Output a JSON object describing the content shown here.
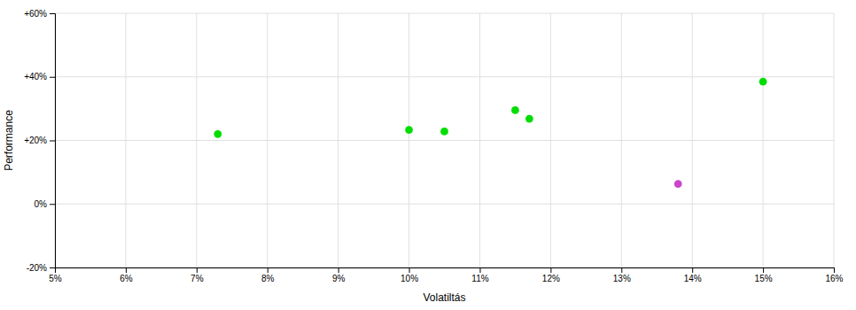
{
  "chart_data": {
    "type": "scatter",
    "xlabel": "Volatiltás",
    "ylabel": "Performance",
    "xlim": [
      0.05,
      0.16
    ],
    "ylim": [
      -0.2,
      0.6
    ],
    "xticks": [
      {
        "value": 0.05,
        "label": "5%"
      },
      {
        "value": 0.06,
        "label": "6%"
      },
      {
        "value": 0.07,
        "label": "7%"
      },
      {
        "value": 0.08,
        "label": "8%"
      },
      {
        "value": 0.09,
        "label": "9%"
      },
      {
        "value": 0.1,
        "label": "10%"
      },
      {
        "value": 0.11,
        "label": "11%"
      },
      {
        "value": 0.12,
        "label": "12%"
      },
      {
        "value": 0.13,
        "label": "13%"
      },
      {
        "value": 0.14,
        "label": "14%"
      },
      {
        "value": 0.15,
        "label": "15%"
      },
      {
        "value": 0.16,
        "label": "16%"
      }
    ],
    "yticks": [
      {
        "value": -0.2,
        "label": "-20%"
      },
      {
        "value": 0.0,
        "label": "0%"
      },
      {
        "value": 0.2,
        "label": "+20%"
      },
      {
        "value": 0.4,
        "label": "+40%"
      },
      {
        "value": 0.6,
        "label": "+60%"
      }
    ],
    "grid": true,
    "marker": "circle",
    "series": [
      {
        "color": "#00dd00",
        "x": [
          0.073,
          0.1,
          0.105,
          0.115,
          0.117,
          0.15
        ],
        "values": [
          0.22,
          0.233,
          0.228,
          0.295,
          0.268,
          0.385
        ]
      },
      {
        "color": "#cc44cc",
        "x": [
          0.138
        ],
        "values": [
          0.063
        ]
      }
    ]
  }
}
